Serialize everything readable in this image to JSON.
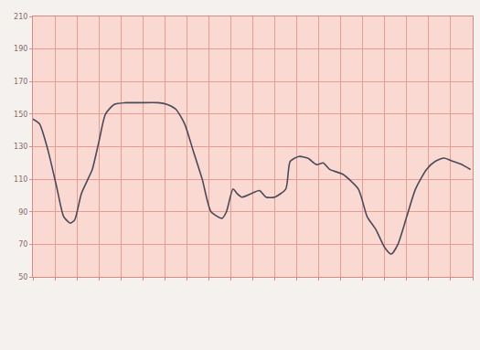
{
  "chart_data": {
    "type": "line",
    "x": [
      0.0,
      0.3,
      0.7,
      1.1,
      1.4,
      1.7,
      1.9,
      2.2,
      2.5,
      2.7,
      3.0,
      3.3,
      3.7,
      4.2,
      4.8,
      5.7,
      6.1,
      6.5,
      6.9,
      7.3,
      7.7,
      8.1,
      8.6,
      8.8,
      9.1,
      9.3,
      9.5,
      9.9,
      10.3,
      10.6,
      11.0,
      11.5,
      11.7,
      12.1,
      12.5,
      12.9,
      13.2,
      13.5,
      14.1,
      14.8,
      15.2,
      15.6,
      16.0,
      16.3,
      16.6,
      17.0,
      17.4,
      17.9,
      18.3,
      18.7,
      19.1,
      19.5,
      19.9
    ],
    "values": [
      147,
      144,
      127,
      104,
      87,
      83,
      85,
      101,
      110,
      116,
      133,
      150,
      156,
      157,
      157,
      157,
      156,
      153,
      144,
      127,
      110,
      90,
      86,
      90,
      104,
      101,
      99,
      101,
      103,
      99,
      99,
      104,
      121,
      124,
      123,
      119,
      120,
      116,
      113,
      104,
      87,
      79,
      68,
      64,
      70,
      87,
      104,
      116,
      121,
      123,
      121,
      119,
      116
    ],
    "color": "#4a4a5a",
    "xlim": [
      0,
      20
    ],
    "xticks": [
      0,
      1,
      2,
      3,
      4,
      5,
      6,
      7,
      8,
      9,
      10,
      11,
      12,
      13,
      14,
      15,
      16,
      17,
      18,
      19,
      20
    ],
    "ylim": [
      50,
      210
    ],
    "yticks": [
      50,
      70,
      90,
      110,
      130,
      150,
      170,
      190,
      210
    ],
    "grid": true,
    "tick_labels": "y"
  }
}
